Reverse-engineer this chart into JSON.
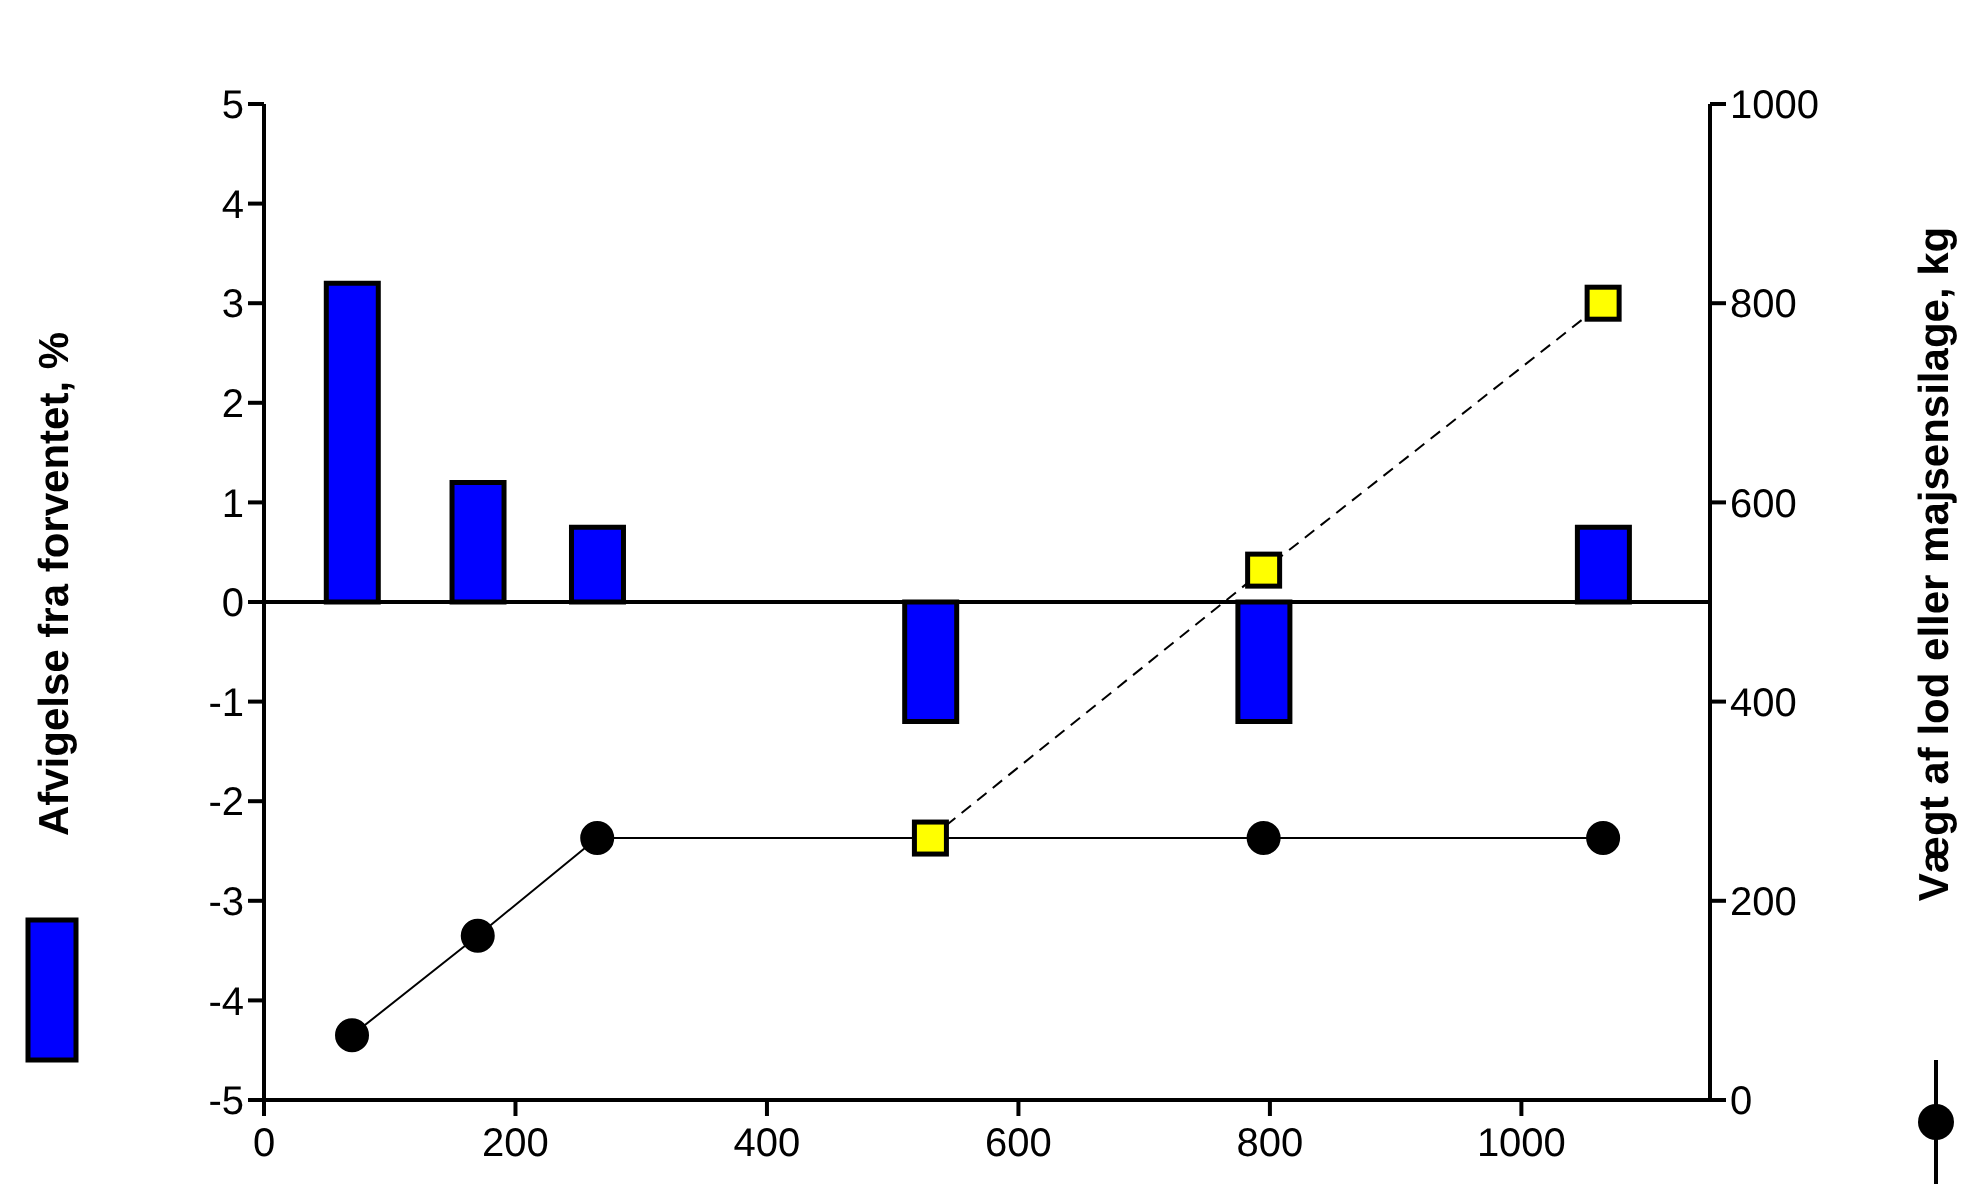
{
  "chart_data": {
    "type": "bar",
    "ylabel": "Afvigelse fra forventet, %",
    "y2label": "Vægt af lod eller majsensilage, kg",
    "x": [
      70,
      170,
      265,
      530,
      795,
      1065
    ],
    "series": [
      {
        "color": "#0000ff",
        "values": [
          3.2,
          1.2,
          0.75,
          -1.2,
          -1.2,
          0.75
        ]
      },
      {
        "type": "line",
        "axis": "y2",
        "color": "#000000",
        "marker": "circle",
        "line_style": "solid",
        "values": [
          65,
          165,
          263,
          263,
          263,
          263
        ]
      },
      {
        "type": "line",
        "axis": "y2",
        "color": "#000000",
        "marker": "none",
        "line_style": "dashed",
        "x": [
          530,
          795,
          1065
        ],
        "values": [
          263,
          532,
          800
        ]
      },
      {
        "type": "scatter",
        "axis": "y2",
        "color": "#ffff00",
        "marker": "square",
        "x": [
          530,
          795,
          1065
        ],
        "values": [
          263,
          532,
          800
        ]
      }
    ],
    "xlim": [
      0,
      1150
    ],
    "xticks": [
      0,
      200,
      400,
      600,
      800,
      1000
    ],
    "ylim": [
      -5,
      5
    ],
    "yticks": [
      -5,
      -4,
      -3,
      -2,
      -1,
      0,
      1,
      2,
      3,
      4,
      5
    ],
    "y2lim": [
      0,
      1000
    ],
    "y2ticks": [
      0,
      200,
      400,
      600,
      800,
      1000
    ],
    "ref_lines": [
      {
        "axis": "y",
        "value": 0,
        "color": "#000000"
      }
    ],
    "grid": false,
    "legend": false
  }
}
